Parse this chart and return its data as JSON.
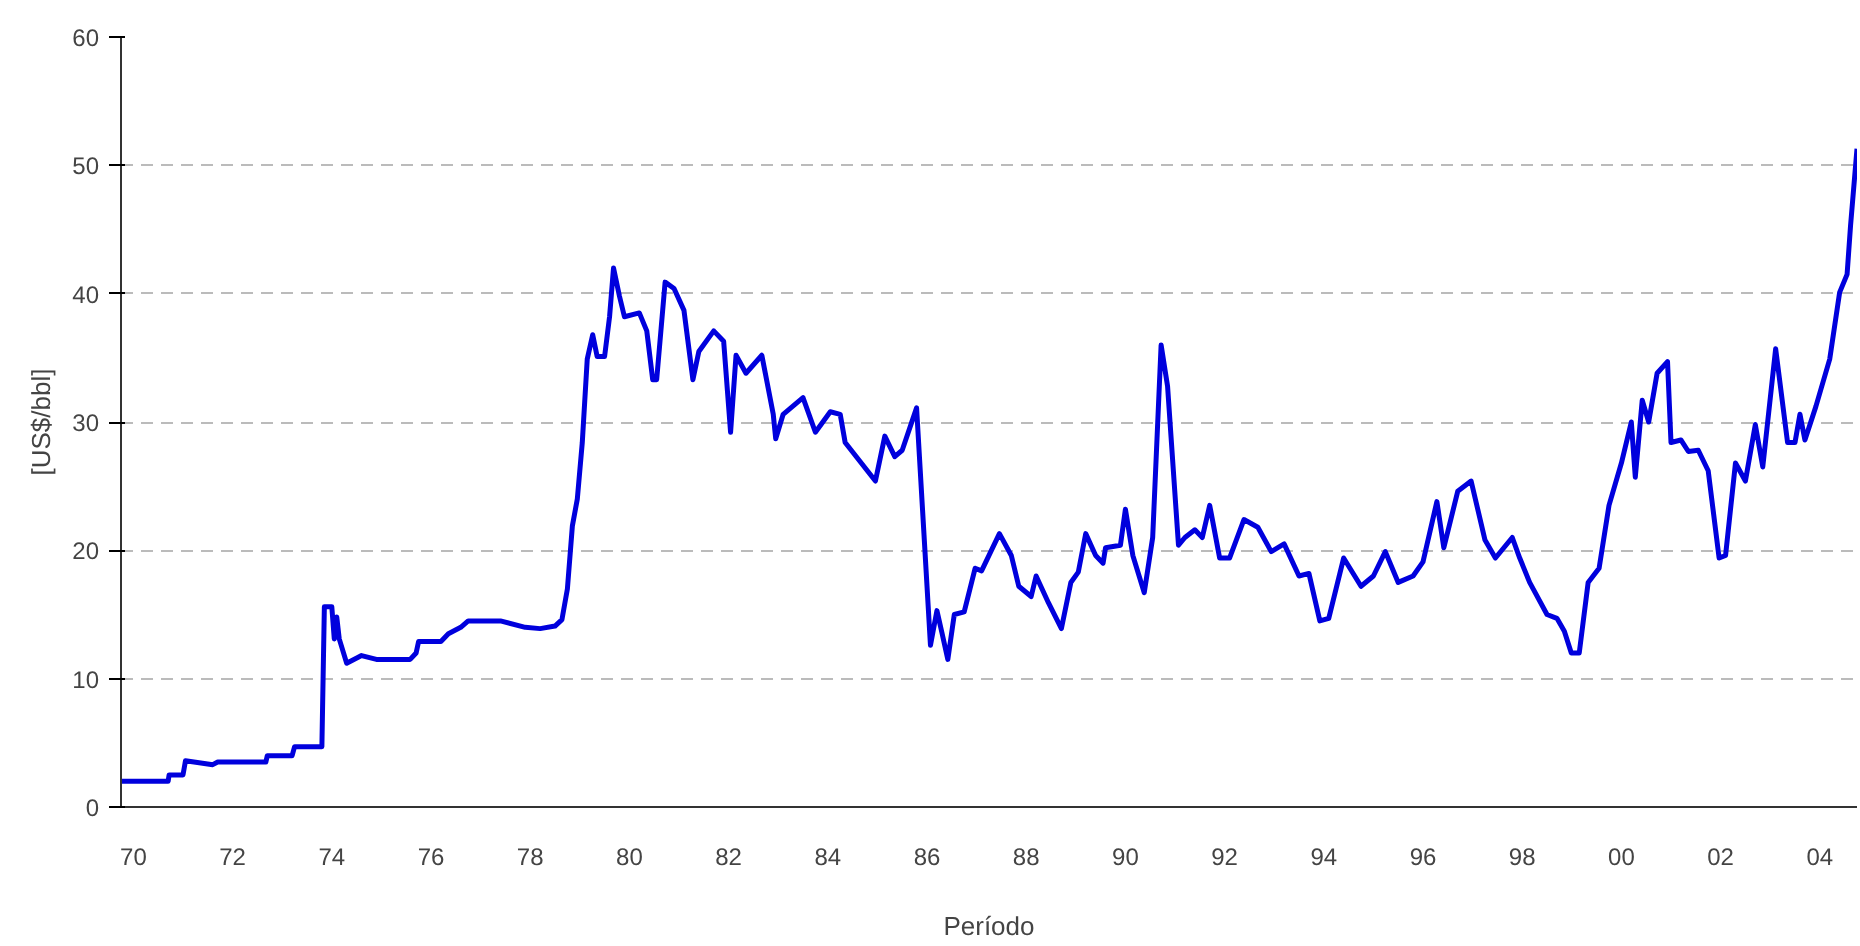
{
  "chart_data": {
    "type": "line",
    "xlabel": "Período",
    "ylabel": "[US$/bbl]",
    "xlim": [
      1969.75,
      2004.75
    ],
    "ylim": [
      0,
      60
    ],
    "xticks": [
      {
        "value": 1970,
        "label": "70"
      },
      {
        "value": 1972,
        "label": "72"
      },
      {
        "value": 1974,
        "label": "74"
      },
      {
        "value": 1976,
        "label": "76"
      },
      {
        "value": 1978,
        "label": "78"
      },
      {
        "value": 1980,
        "label": "80"
      },
      {
        "value": 1982,
        "label": "82"
      },
      {
        "value": 1984,
        "label": "84"
      },
      {
        "value": 1986,
        "label": "86"
      },
      {
        "value": 1988,
        "label": "88"
      },
      {
        "value": 1990,
        "label": "90"
      },
      {
        "value": 1992,
        "label": "92"
      },
      {
        "value": 1994,
        "label": "94"
      },
      {
        "value": 1996,
        "label": "96"
      },
      {
        "value": 1998,
        "label": "98"
      },
      {
        "value": 2000,
        "label": "00"
      },
      {
        "value": 2002,
        "label": "02"
      },
      {
        "value": 2004,
        "label": "04"
      }
    ],
    "yticks": [
      0,
      10,
      20,
      30,
      40,
      50,
      60
    ],
    "grid": "y",
    "marker": "none",
    "line_style": "solid",
    "series": [
      {
        "color": "#0000dd",
        "x": [
          1969.75,
          1970.7,
          1970.72,
          1971.0,
          1971.05,
          1971.6,
          1971.7,
          1972.67,
          1972.7,
          1973.2,
          1973.25,
          1973.8,
          1973.85,
          1974.0,
          1974.05,
          1974.1,
          1974.15,
          1974.3,
          1974.6,
          1974.9,
          1975.58,
          1975.7,
          1975.75,
          1976.2,
          1976.35,
          1976.6,
          1976.75,
          1977.4,
          1977.9,
          1978.2,
          1978.5,
          1978.64,
          1978.75,
          1978.85,
          1978.95,
          1979.05,
          1979.15,
          1979.26,
          1979.35,
          1979.5,
          1979.6,
          1979.68,
          1979.8,
          1979.9,
          1980.2,
          1980.35,
          1980.47,
          1980.55,
          1980.72,
          1980.9,
          1981.1,
          1981.28,
          1981.4,
          1981.7,
          1981.9,
          1982.04,
          1982.15,
          1982.35,
          1982.67,
          1982.9,
          1982.95,
          1983.1,
          1983.5,
          1983.75,
          1984.05,
          1984.25,
          1984.35,
          1984.96,
          1985.15,
          1985.35,
          1985.5,
          1985.79,
          1986.07,
          1986.2,
          1986.3,
          1986.42,
          1986.55,
          1986.75,
          1986.97,
          1987.1,
          1987.46,
          1987.7,
          1987.85,
          1988.1,
          1988.2,
          1988.45,
          1988.71,
          1988.9,
          1989.05,
          1989.2,
          1989.4,
          1989.55,
          1989.6,
          1989.9,
          1990.0,
          1990.15,
          1990.38,
          1990.55,
          1990.72,
          1990.85,
          1991.07,
          1991.2,
          1991.4,
          1991.55,
          1991.7,
          1991.9,
          1992.1,
          1992.39,
          1992.67,
          1992.94,
          1993.2,
          1993.5,
          1993.7,
          1993.92,
          1994.1,
          1994.4,
          1994.75,
          1995.0,
          1995.24,
          1995.5,
          1995.8,
          1996.0,
          1996.28,
          1996.42,
          1996.7,
          1996.97,
          1997.25,
          1997.46,
          1997.8,
          1997.95,
          1998.15,
          1998.5,
          1998.7,
          1998.85,
          1998.99,
          1999.15,
          1999.33,
          1999.55,
          1999.75,
          2000.0,
          2000.2,
          2000.28,
          2000.42,
          2000.55,
          2000.72,
          2000.93,
          2001.0,
          2001.2,
          2001.35,
          2001.55,
          2001.75,
          2001.97,
          2002.1,
          2002.3,
          2002.5,
          2002.7,
          2002.85,
          2003.11,
          2003.35,
          2003.5,
          2003.6,
          2003.7,
          2003.92,
          2004.2,
          2004.4,
          2004.55,
          2004.62,
          2004.75
        ],
        "values": [
          2.0,
          2.0,
          2.5,
          2.5,
          3.6,
          3.3,
          3.5,
          3.5,
          4.0,
          4.0,
          4.7,
          4.7,
          15.6,
          15.6,
          13.1,
          14.8,
          13.1,
          11.2,
          11.8,
          11.5,
          11.5,
          12.0,
          12.9,
          12.9,
          13.5,
          14.0,
          14.5,
          14.5,
          14.0,
          13.9,
          14.1,
          14.6,
          17.0,
          21.9,
          24.0,
          28.4,
          34.9,
          36.8,
          35.1,
          35.1,
          38.2,
          42.0,
          39.8,
          38.2,
          38.5,
          37.1,
          33.3,
          33.3,
          40.9,
          40.4,
          38.7,
          33.3,
          35.5,
          37.1,
          36.3,
          29.2,
          35.2,
          33.8,
          35.2,
          30.6,
          28.7,
          30.6,
          31.9,
          29.2,
          30.8,
          30.6,
          28.4,
          25.4,
          28.9,
          27.3,
          27.8,
          31.1,
          12.6,
          15.3,
          13.6,
          11.5,
          15.0,
          15.2,
          18.6,
          18.4,
          21.3,
          19.6,
          17.2,
          16.4,
          18.0,
          15.9,
          13.9,
          17.5,
          18.3,
          21.3,
          19.6,
          19.0,
          20.2,
          20.4,
          23.2,
          19.6,
          16.7,
          21.0,
          36.0,
          32.8,
          20.4,
          21.0,
          21.6,
          21.0,
          23.5,
          19.4,
          19.4,
          22.4,
          21.8,
          19.9,
          20.5,
          18.0,
          18.2,
          14.5,
          14.7,
          19.4,
          17.2,
          18.0,
          19.9,
          17.5,
          18.0,
          19.1,
          23.8,
          20.2,
          24.6,
          25.4,
          20.8,
          19.4,
          21.0,
          19.4,
          17.5,
          15.0,
          14.7,
          13.7,
          12.0,
          12.0,
          17.5,
          18.6,
          23.5,
          26.8,
          30.0,
          25.7,
          31.7,
          30.0,
          33.8,
          34.7,
          28.4,
          28.6,
          27.7,
          27.8,
          26.2,
          19.4,
          19.6,
          26.8,
          25.4,
          29.8,
          26.5,
          35.7,
          28.4,
          28.4,
          30.6,
          28.6,
          31.2,
          34.9,
          40.1,
          41.5,
          45.3,
          51.3
        ]
      }
    ]
  }
}
